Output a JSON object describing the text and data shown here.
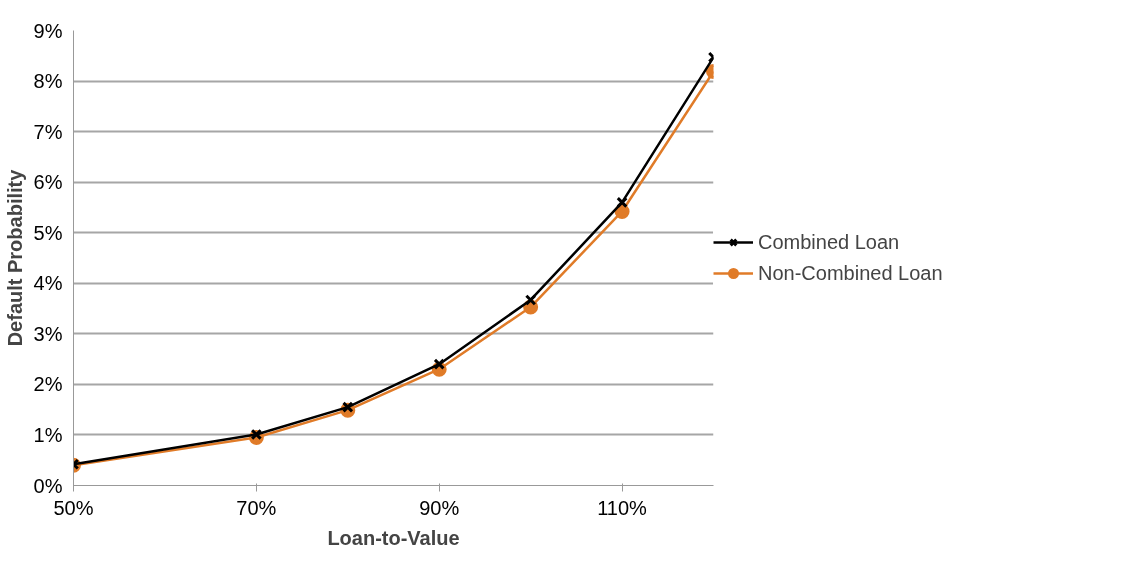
{
  "chart_data": {
    "type": "line",
    "xlabel": "Loan-to-Value",
    "ylabel": "Default Probability",
    "x": [
      50,
      70,
      80,
      90,
      100,
      110,
      120
    ],
    "series": [
      {
        "name": "Combined Loan",
        "color": "#000000",
        "marker": "cross",
        "values": [
          0.42,
          1.01,
          1.55,
          2.4,
          3.67,
          5.6,
          8.47
        ]
      },
      {
        "name": "Non-Combined Loan",
        "color": "#e07b28",
        "marker": "circle",
        "values": [
          0.4,
          0.95,
          1.49,
          2.3,
          3.53,
          5.42,
          8.19
        ]
      }
    ],
    "xlim": [
      50,
      120
    ],
    "xticks": [
      {
        "value": 50,
        "label": "50%"
      },
      {
        "value": 70,
        "label": "70%"
      },
      {
        "value": 90,
        "label": "90%"
      },
      {
        "value": 110,
        "label": "110%"
      }
    ],
    "ylim": [
      0,
      9
    ],
    "yticks": [
      {
        "value": 0,
        "label": "0%"
      },
      {
        "value": 1,
        "label": "1%"
      },
      {
        "value": 2,
        "label": "2%"
      },
      {
        "value": 3,
        "label": "3%"
      },
      {
        "value": 4,
        "label": "4%"
      },
      {
        "value": 5,
        "label": "5%"
      },
      {
        "value": 6,
        "label": "6%"
      },
      {
        "value": 7,
        "label": "7%"
      },
      {
        "value": 8,
        "label": "8%"
      },
      {
        "value": 9,
        "label": "9%"
      }
    ],
    "grid": "y",
    "legend": "right",
    "line_style": "solid"
  }
}
